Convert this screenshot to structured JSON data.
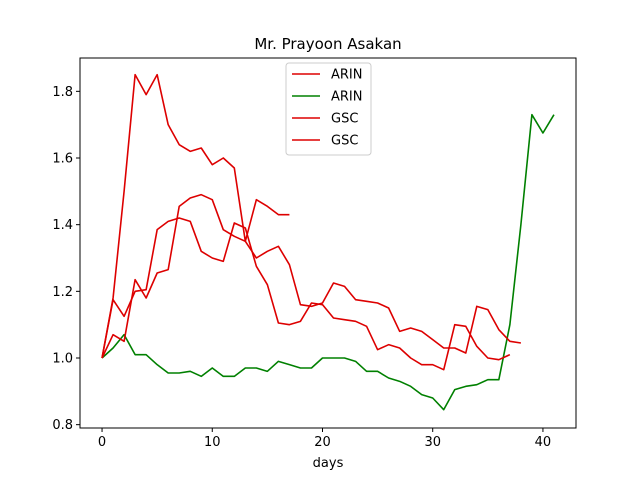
{
  "chart_data": {
    "type": "line",
    "title": "Mr. Prayoon Asakan",
    "xlabel": "days",
    "ylabel": "",
    "xlim": [
      -2,
      43
    ],
    "ylim": [
      0.79,
      1.9
    ],
    "xticks": [
      0,
      10,
      20,
      30,
      40
    ],
    "yticks": [
      0.8,
      1.0,
      1.2,
      1.4,
      1.6,
      1.8
    ],
    "grid": false,
    "legend_position": "top-center",
    "series": [
      {
        "name": "ARIN",
        "color": "#dd0000",
        "x": [
          0,
          1,
          2,
          3,
          4,
          5,
          6,
          7,
          8,
          9,
          10,
          11,
          12,
          13,
          14,
          15,
          16,
          17
        ],
        "y": [
          1.0,
          1.18,
          1.5,
          1.85,
          1.79,
          1.85,
          1.7,
          1.64,
          1.62,
          1.63,
          1.58,
          1.6,
          1.57,
          1.35,
          1.475,
          1.455,
          1.43,
          1.43
        ]
      },
      {
        "name": "ARIN",
        "color": "#008000",
        "x": [
          0,
          1,
          2,
          3,
          4,
          5,
          6,
          7,
          8,
          9,
          10,
          11,
          12,
          13,
          14,
          15,
          16,
          17,
          18,
          19,
          20,
          21,
          22,
          23,
          24,
          25,
          26,
          27,
          28,
          29,
          30,
          31,
          32,
          33,
          34,
          35,
          36,
          37,
          38,
          39,
          40,
          41
        ],
        "y": [
          1.0,
          1.03,
          1.07,
          1.01,
          1.01,
          0.98,
          0.955,
          0.955,
          0.96,
          0.945,
          0.97,
          0.945,
          0.945,
          0.97,
          0.97,
          0.96,
          0.99,
          0.98,
          0.97,
          0.97,
          1.0,
          1.0,
          1.0,
          0.99,
          0.96,
          0.96,
          0.94,
          0.93,
          0.915,
          0.89,
          0.88,
          0.845,
          0.905,
          0.915,
          0.92,
          0.935,
          0.935,
          1.1,
          1.4,
          1.73,
          1.675,
          1.73
        ]
      },
      {
        "name": "GSC",
        "color": "#dd0000",
        "x": [
          0,
          1,
          2,
          3,
          4,
          5,
          6,
          7,
          8,
          9,
          10,
          11,
          12,
          13,
          14,
          15,
          16,
          17,
          18,
          19,
          20,
          21,
          22,
          23,
          24,
          25,
          26,
          27,
          28,
          29,
          30,
          31,
          32,
          33,
          34,
          35,
          36,
          37,
          38
        ],
        "y": [
          1.0,
          1.07,
          1.05,
          1.235,
          1.18,
          1.255,
          1.265,
          1.455,
          1.48,
          1.49,
          1.475,
          1.385,
          1.365,
          1.35,
          1.3,
          1.32,
          1.335,
          1.28,
          1.16,
          1.155,
          1.165,
          1.225,
          1.215,
          1.175,
          1.17,
          1.165,
          1.15,
          1.08,
          1.09,
          1.08,
          1.055,
          1.03,
          1.03,
          1.015,
          1.155,
          1.145,
          1.085,
          1.05,
          1.045
        ]
      },
      {
        "name": "GSC",
        "color": "#dd0000",
        "x": [
          0,
          1,
          2,
          3,
          4,
          5,
          6,
          7,
          8,
          9,
          10,
          11,
          12,
          13,
          14,
          15,
          16,
          17,
          18,
          19,
          20,
          21,
          22,
          23,
          24,
          25,
          26,
          27,
          28,
          29,
          30,
          31,
          32,
          33,
          34,
          35,
          36,
          37
        ],
        "y": [
          1.0,
          1.175,
          1.125,
          1.2,
          1.205,
          1.385,
          1.41,
          1.42,
          1.41,
          1.32,
          1.3,
          1.29,
          1.405,
          1.39,
          1.275,
          1.22,
          1.105,
          1.1,
          1.11,
          1.165,
          1.16,
          1.12,
          1.115,
          1.11,
          1.095,
          1.025,
          1.04,
          1.03,
          1.0,
          0.98,
          0.98,
          0.965,
          1.1,
          1.095,
          1.035,
          1.0,
          0.995,
          1.01
        ]
      }
    ]
  }
}
